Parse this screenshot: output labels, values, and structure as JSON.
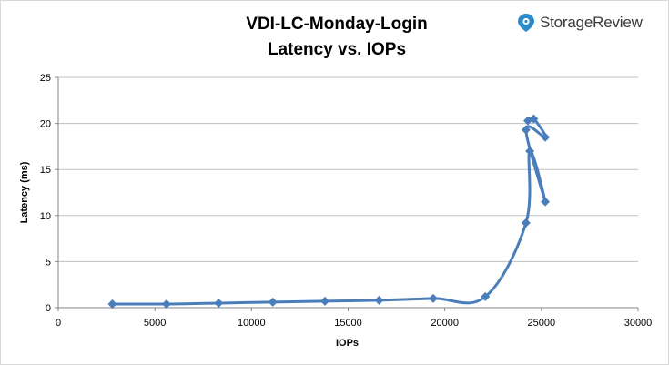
{
  "brand": {
    "name": "StorageReview",
    "icon": "storagereview-logo-icon",
    "color": "#2e8bc9"
  },
  "chart_data": {
    "type": "line",
    "title": "VDI-LC-Monday-Login",
    "subtitle": "Latency vs. IOPs",
    "xlabel": "IOPs",
    "ylabel": "Latency (ms)",
    "xlim": [
      0,
      30000
    ],
    "ylim": [
      0,
      25
    ],
    "xticks": [
      0,
      5000,
      10000,
      15000,
      20000,
      25000,
      30000
    ],
    "yticks": [
      0,
      5,
      10,
      15,
      20,
      25
    ],
    "grid": true,
    "legend": "none",
    "series_color": "#4a7ebb",
    "series": [
      {
        "x": [
          2800,
          5600,
          8300,
          11100,
          13800,
          16600,
          19400,
          22100,
          24200,
          24400,
          25200,
          24200,
          25200,
          24600,
          24300
        ],
        "y": [
          0.4,
          0.4,
          0.5,
          0.6,
          0.7,
          0.8,
          1.0,
          1.2,
          9.2,
          17.0,
          11.5,
          19.3,
          18.5,
          20.5,
          20.3
        ]
      }
    ]
  }
}
